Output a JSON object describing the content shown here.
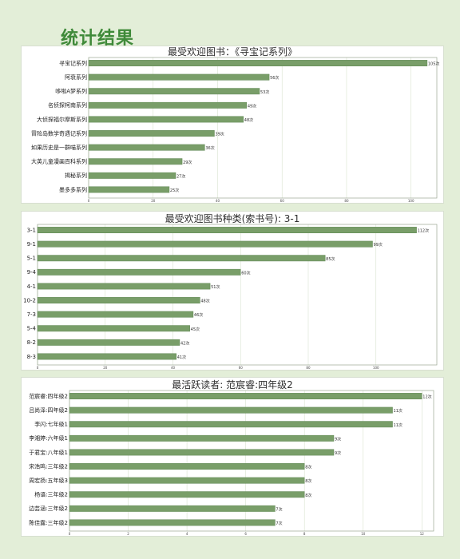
{
  "page": {
    "title": "统计结果"
  },
  "colors": {
    "background": "#e3eed8",
    "title": "#3f8a39",
    "bar": "#799e69",
    "panel": "#ffffff"
  },
  "chart_data": [
    {
      "type": "bar",
      "orientation": "horizontal",
      "title": "最受欢迎图书：《寻宝记系列》",
      "value_suffix": "次",
      "categories": [
        "寻宝记系列",
        "阿衰系列",
        "哆啦A梦系列",
        "名侦探柯南系列",
        "大侦探福尔摩斯系列",
        "冒险岛数学奇遇记系列",
        "如果历史是一群喵系列",
        "大英儿童漫画百科系列",
        "揭秘系列",
        "墨多多系列"
      ],
      "values": [
        105,
        56,
        53,
        49,
        48,
        39,
        36,
        29,
        27,
        25
      ],
      "xticks": [
        0,
        20,
        40,
        60,
        80,
        100
      ],
      "xlim": [
        0,
        108
      ],
      "grid": true,
      "legend": "none"
    },
    {
      "type": "bar",
      "orientation": "horizontal",
      "title": "最受欢迎图书种类(索书号): 3-1",
      "value_suffix": "次",
      "categories": [
        "3-1",
        "9-1",
        "5-1",
        "9-4",
        "4-1",
        "10-2",
        "7-3",
        "5-4",
        "8-2",
        "8-3"
      ],
      "values": [
        112,
        99,
        85,
        60,
        51,
        48,
        46,
        45,
        42,
        41
      ],
      "xticks": [
        0,
        20,
        40,
        60,
        80,
        100
      ],
      "xlim": [
        0,
        118
      ],
      "grid": true,
      "legend": "none"
    },
    {
      "type": "bar",
      "orientation": "horizontal",
      "title": "最活跃读者: 范宸睿:四年级2",
      "value_suffix": "次",
      "categories": [
        "范宸睿:四年级2",
        "吕尚泽:四年级2",
        "李闪:七年级1",
        "李湘婷:六年级1",
        "于君宝:八年级1",
        "宋浩鸣:三年级2",
        "周宏扬:五年级3",
        "杨语:三年级2",
        "边芸涵:三年级2",
        "陈佳露:三年级2"
      ],
      "values": [
        12,
        11,
        11,
        9,
        9,
        8,
        8,
        8,
        7,
        7
      ],
      "xticks": [
        0,
        2,
        4,
        6,
        8,
        10,
        12
      ],
      "xlim": [
        0,
        12.4
      ],
      "grid": true,
      "legend": "none"
    }
  ]
}
